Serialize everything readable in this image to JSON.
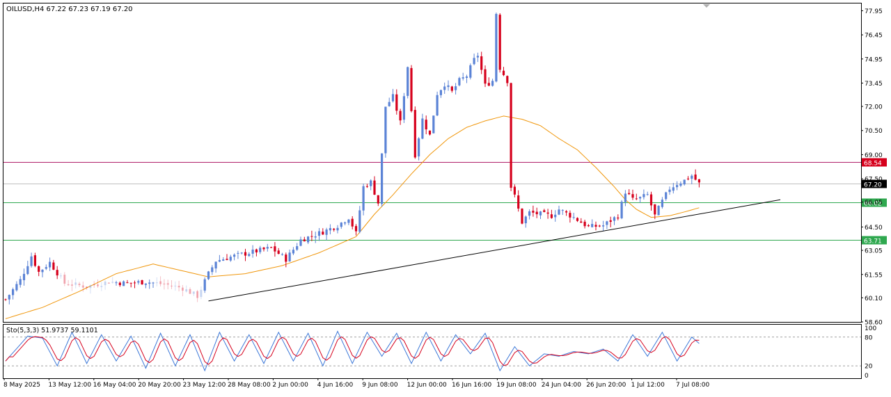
{
  "header": {
    "symbol_info": "OILUSD,H4  67.22 67.23 67.19 67.20"
  },
  "stoch": {
    "label": "Sto(5,3,3) 51.9737 59.1101",
    "levels": [
      "100",
      "80",
      "20",
      "0"
    ]
  },
  "colors": {
    "bull": "#5b83d6",
    "bear": "#d6001c",
    "ma": "#f0960a",
    "resistance": "#b0206a",
    "support": "#2fa84f",
    "stoch_main": "#3c78d8",
    "stoch_signal": "#d6001c",
    "trendline": "#000000"
  },
  "chart_data": [
    {
      "type": "candlestick",
      "symbol": "OILUSD",
      "timeframe": "H4",
      "ylim": [
        58.6,
        78.4
      ],
      "y_ticks": [
        77.95,
        76.45,
        74.95,
        73.45,
        72.0,
        70.5,
        69.0,
        67.5,
        66.05,
        64.5,
        63.05,
        61.55,
        60.1,
        58.6
      ],
      "x_ticks": [
        "8 May 2025",
        "13 May 12:00",
        "16 May 04:00",
        "20 May 20:00",
        "23 May 12:00",
        "28 May 08:00",
        "2 Jun 00:00",
        "4 Jun 16:00",
        "9 Jun 08:00",
        "12 Jun 00:00",
        "16 Jun 16:00",
        "19 Jun 08:00",
        "24 Jun 04:00",
        "26 Jun 20:00",
        "1 Jul 12:00",
        "7 Jul 08:00"
      ],
      "close_path": [
        [
          0,
          60.0
        ],
        [
          4,
          61.2
        ],
        [
          7,
          62.7
        ],
        [
          9,
          61.7
        ],
        [
          12,
          62.3
        ],
        [
          16,
          61.0
        ],
        [
          22,
          60.8
        ],
        [
          28,
          61.1
        ],
        [
          33,
          61.0
        ],
        [
          38,
          61.1
        ],
        [
          44,
          60.9
        ],
        [
          48,
          60.7
        ],
        [
          52,
          60.2
        ],
        [
          55,
          61.6
        ],
        [
          57,
          62.4
        ],
        [
          62,
          62.7
        ],
        [
          68,
          63.0
        ],
        [
          72,
          63.2
        ],
        [
          76,
          62.5
        ],
        [
          80,
          63.7
        ],
        [
          86,
          64.2
        ],
        [
          90,
          64.6
        ],
        [
          93,
          65.1
        ],
        [
          95,
          64.1
        ],
        [
          97,
          67.0
        ],
        [
          99,
          67.3
        ],
        [
          101,
          66.0
        ],
        [
          103,
          72.0
        ],
        [
          105,
          72.6
        ],
        [
          107,
          71.0
        ],
        [
          109,
          74.5
        ],
        [
          111,
          69.0
        ],
        [
          113,
          71.2
        ],
        [
          115,
          70.2
        ],
        [
          117,
          72.8
        ],
        [
          119,
          73.4
        ],
        [
          121,
          72.9
        ],
        [
          123,
          73.6
        ],
        [
          125,
          73.9
        ],
        [
          127,
          74.9
        ],
        [
          128,
          75.2
        ],
        [
          130,
          73.3
        ],
        [
          132,
          73.6
        ],
        [
          133,
          77.8
        ],
        [
          134,
          74.4
        ],
        [
          136,
          73.6
        ],
        [
          137,
          67.0
        ],
        [
          138,
          66.4
        ],
        [
          140,
          64.8
        ],
        [
          142,
          65.4
        ],
        [
          148,
          65.2
        ],
        [
          150,
          65.6
        ],
        [
          154,
          65.1
        ],
        [
          158,
          64.5
        ],
        [
          162,
          64.6
        ],
        [
          166,
          65.2
        ],
        [
          168,
          66.7
        ],
        [
          170,
          66.2
        ],
        [
          172,
          66.3
        ],
        [
          174,
          66.5
        ],
        [
          176,
          65.2
        ],
        [
          178,
          66.1
        ],
        [
          180,
          66.9
        ],
        [
          182,
          67.2
        ],
        [
          184,
          67.4
        ],
        [
          186,
          67.7
        ],
        [
          188,
          67.2
        ]
      ],
      "gap_ranges": [
        [
          14,
          30
        ],
        [
          40,
          54
        ]
      ],
      "moving_average": [
        [
          0,
          58.8
        ],
        [
          10,
          59.5
        ],
        [
          20,
          60.5
        ],
        [
          30,
          61.6
        ],
        [
          40,
          62.2
        ],
        [
          55,
          61.4
        ],
        [
          65,
          61.6
        ],
        [
          75,
          62.1
        ],
        [
          85,
          62.9
        ],
        [
          95,
          63.9
        ],
        [
          100,
          65.3
        ],
        [
          105,
          66.5
        ],
        [
          110,
          67.8
        ],
        [
          115,
          69.0
        ],
        [
          120,
          70.0
        ],
        [
          125,
          70.7
        ],
        [
          130,
          71.1
        ],
        [
          135,
          71.4
        ],
        [
          140,
          71.2
        ],
        [
          145,
          70.8
        ],
        [
          150,
          70.0
        ],
        [
          155,
          69.3
        ],
        [
          160,
          68.2
        ],
        [
          165,
          67.0
        ],
        [
          168,
          66.2
        ],
        [
          171,
          65.6
        ],
        [
          175,
          65.1
        ],
        [
          180,
          65.2
        ],
        [
          185,
          65.5
        ],
        [
          188,
          65.7
        ]
      ],
      "horizontal_levels": [
        {
          "value": 68.54,
          "label": "68.54",
          "style": "resistance"
        },
        {
          "value": 67.2,
          "label": "67.20",
          "style": "current"
        },
        {
          "value": 66.02,
          "label": "66.02",
          "style": "support"
        },
        {
          "value": 63.71,
          "label": "63.71",
          "style": "support"
        }
      ],
      "trendline": {
        "from": [
          55,
          59.9
        ],
        "to": [
          210,
          66.2
        ]
      }
    },
    {
      "type": "line",
      "name": "Sto(5,3,3)",
      "ylim": [
        0,
        100
      ],
      "levels": [
        80,
        20
      ],
      "main_anchors": [
        [
          0,
          30
        ],
        [
          6,
          82
        ],
        [
          10,
          78
        ],
        [
          14,
          20
        ],
        [
          18,
          90
        ],
        [
          22,
          25
        ],
        [
          26,
          85
        ],
        [
          30,
          30
        ],
        [
          34,
          82
        ],
        [
          38,
          15
        ],
        [
          42,
          88
        ],
        [
          46,
          20
        ],
        [
          50,
          85
        ],
        [
          54,
          10
        ],
        [
          58,
          90
        ],
        [
          62,
          30
        ],
        [
          66,
          85
        ],
        [
          70,
          25
        ],
        [
          74,
          90
        ],
        [
          78,
          30
        ],
        [
          82,
          88
        ],
        [
          86,
          20
        ],
        [
          90,
          92
        ],
        [
          94,
          25
        ],
        [
          98,
          90
        ],
        [
          102,
          40
        ],
        [
          106,
          88
        ],
        [
          110,
          25
        ],
        [
          114,
          90
        ],
        [
          118,
          30
        ],
        [
          122,
          85
        ],
        [
          126,
          45
        ],
        [
          130,
          88
        ],
        [
          134,
          10
        ],
        [
          138,
          60
        ],
        [
          142,
          20
        ],
        [
          146,
          45
        ],
        [
          150,
          40
        ],
        [
          154,
          50
        ],
        [
          158,
          45
        ],
        [
          162,
          55
        ],
        [
          166,
          30
        ],
        [
          170,
          85
        ],
        [
          174,
          40
        ],
        [
          178,
          90
        ],
        [
          182,
          30
        ],
        [
          186,
          80
        ],
        [
          189,
          60
        ]
      ]
    }
  ]
}
